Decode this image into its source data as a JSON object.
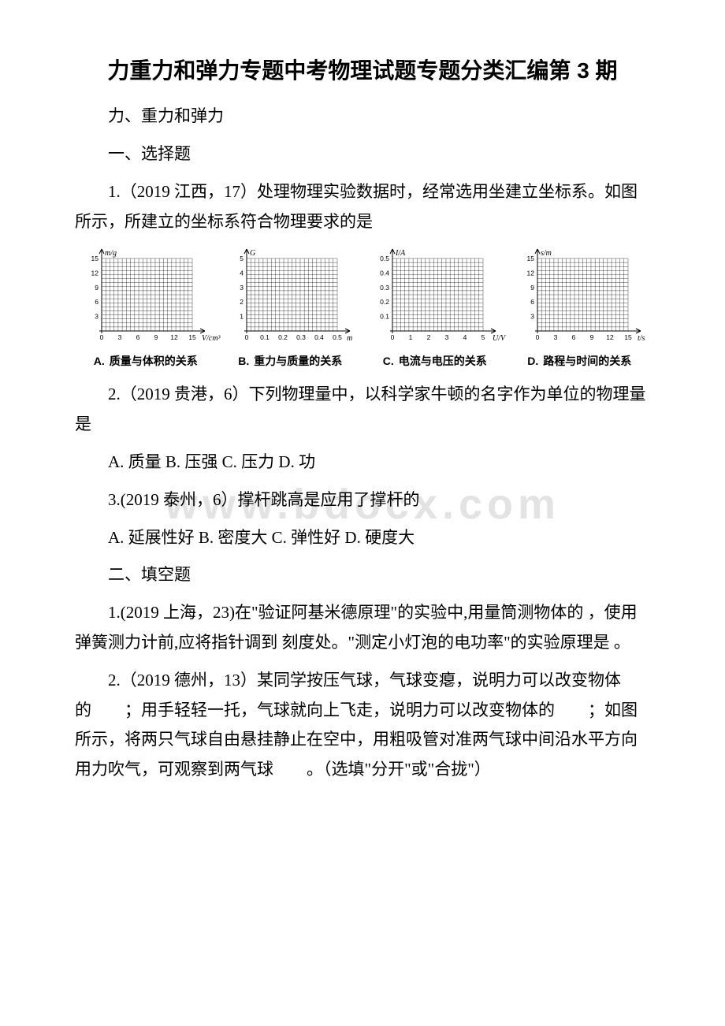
{
  "title": "力重力和弹力专题中考物理试题专题分类汇编第 3 期",
  "section_topic": "力、重力和弹力",
  "section_mcq": "一、选择题",
  "q1_text": "1.（2019 江西，17）处理物理实验数据时，经常选用坐建立坐标系。如图所示，所建立的坐标系符合物理要求的是",
  "charts": [
    {
      "y_label": "m/g",
      "x_label": "V/cm³",
      "y_ticks": [
        "3",
        "6",
        "9",
        "12",
        "15"
      ],
      "x_ticks": [
        "0",
        "3",
        "6",
        "9",
        "12",
        "15"
      ],
      "caption_letter": "A.",
      "caption": "质量与体积的关系"
    },
    {
      "y_label": "G",
      "x_label": "m",
      "y_ticks": [
        "1",
        "2",
        "3",
        "4",
        "5"
      ],
      "x_ticks": [
        "0",
        "0.1",
        "0.2",
        "0.3",
        "0.4",
        "0.5"
      ],
      "caption_letter": "B.",
      "caption": "重力与质量的关系"
    },
    {
      "y_label": "I/A",
      "x_label": "U/V",
      "y_ticks": [
        "0.1",
        "0.2",
        "0.3",
        "0.4",
        "0.5"
      ],
      "x_ticks": [
        "0",
        "1",
        "2",
        "3",
        "4",
        "5"
      ],
      "caption_letter": "C.",
      "caption": "电流与电压的关系"
    },
    {
      "y_label": "s/m",
      "x_label": "t/s",
      "y_ticks": [
        "3",
        "6",
        "9",
        "12",
        "15"
      ],
      "x_ticks": [
        "0",
        "3",
        "6",
        "9",
        "12",
        "15"
      ],
      "caption_letter": "D.",
      "caption": "路程与时间的关系"
    }
  ],
  "chart_style": {
    "grid_color": "#000000",
    "grid_minor_stroke": 0.35,
    "axis_stroke": 1,
    "bg": "#ffffff"
  },
  "q2_text": "2.（2019 贵港，6）下列物理量中，以科学家牛顿的名字作为单位的物理量是",
  "q2_options": "A. 质量 B. 压强 C. 压力 D. 功",
  "q3_text": "3.(2019 泰州，6）撑杆跳高是应用了撑杆的",
  "q3_options": "A. 延展性好 B. 密度大 C. 弹性好 D. 硬度大",
  "section_fill": "二、填空题",
  "fill_q1": "1.(2019 上海，23)在\"验证阿基米德原理\"的实验中,用量筒测物体的 ，使用弹簧测力计前,应将指针调到 刻度处。\"测定小灯泡的电功率\"的实验原理是 。",
  "fill_q2": "2.（2019 德州，13）某同学按压气球，气球变瘪，说明力可以改变物体的　　；用手轻轻一托，气球就向上飞走，说明力可以改变物体的　　；如图所示，将两只气球自由悬挂静止在空中，用粗吸管对准两气球中间沿水平方向用力吹气，可观察到两气球　　。（选填\"分开\"或\"合拢\"）",
  "watermark_text": "www.bdocx.com"
}
